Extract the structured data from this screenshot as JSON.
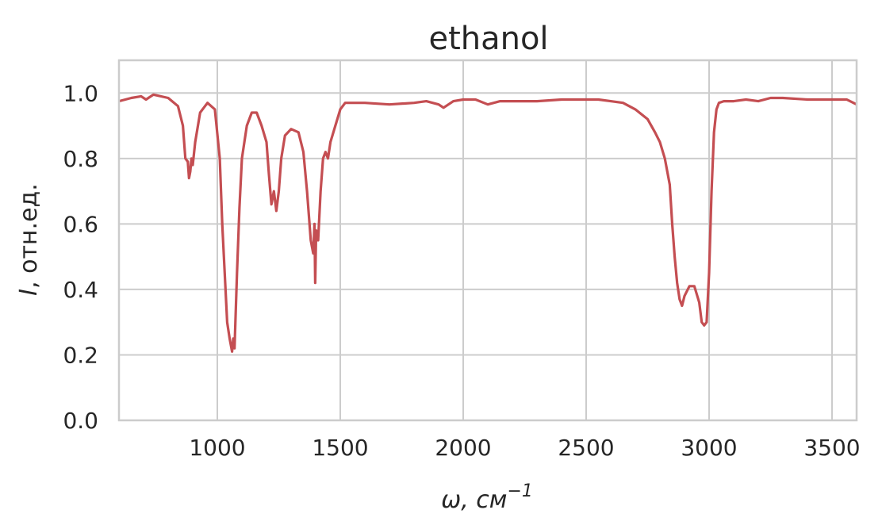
{
  "chart_data": {
    "type": "line",
    "title": "ethanol",
    "xlabel_main": "ω, см",
    "xlabel_sup": "−1",
    "ylabel_italic": "I",
    "ylabel_rest": ", отн.ед.",
    "xlim": [
      600,
      3600
    ],
    "ylim": [
      0,
      1.1
    ],
    "xticks": [
      1000,
      1500,
      2000,
      2500,
      3000,
      3500
    ],
    "xtick_labels": [
      "1000",
      "1500",
      "2000",
      "2500",
      "3000",
      "3500"
    ],
    "yticks": [
      0.0,
      0.2,
      0.4,
      0.6,
      0.8,
      1.0
    ],
    "ytick_labels": [
      "0.0",
      "0.2",
      "0.4",
      "0.6",
      "0.8",
      "1.0"
    ],
    "grid": true,
    "line_color": "#c44e52",
    "series": [
      {
        "x": [
          600,
          650,
          690,
          710,
          740,
          800,
          840,
          860,
          870,
          880,
          885,
          890,
          895,
          900,
          910,
          930,
          960,
          990,
          1010,
          1020,
          1030,
          1040,
          1050,
          1060,
          1065,
          1070,
          1080,
          1090,
          1100,
          1120,
          1140,
          1160,
          1180,
          1200,
          1210,
          1220,
          1230,
          1240,
          1250,
          1260,
          1275,
          1300,
          1330,
          1350,
          1365,
          1380,
          1390,
          1395,
          1398,
          1402,
          1410,
          1420,
          1430,
          1440,
          1450,
          1460,
          1480,
          1500,
          1520,
          1550,
          1600,
          1700,
          1800,
          1850,
          1900,
          1920,
          1940,
          1960,
          2000,
          2050,
          2100,
          2150,
          2200,
          2300,
          2400,
          2500,
          2550,
          2600,
          2650,
          2700,
          2750,
          2780,
          2800,
          2820,
          2840,
          2850,
          2860,
          2870,
          2880,
          2890,
          2900,
          2920,
          2940,
          2960,
          2970,
          2980,
          2990,
          3000,
          3010,
          3020,
          3030,
          3040,
          3060,
          3100,
          3150,
          3200,
          3250,
          3300,
          3400,
          3500,
          3560,
          3600
        ],
        "y": [
          0.975,
          0.985,
          0.99,
          0.98,
          0.995,
          0.985,
          0.96,
          0.9,
          0.8,
          0.79,
          0.74,
          0.76,
          0.8,
          0.78,
          0.85,
          0.94,
          0.97,
          0.95,
          0.8,
          0.6,
          0.45,
          0.3,
          0.25,
          0.21,
          0.25,
          0.22,
          0.45,
          0.65,
          0.8,
          0.9,
          0.94,
          0.94,
          0.9,
          0.85,
          0.75,
          0.66,
          0.7,
          0.64,
          0.7,
          0.8,
          0.87,
          0.89,
          0.88,
          0.82,
          0.7,
          0.55,
          0.51,
          0.6,
          0.42,
          0.58,
          0.55,
          0.7,
          0.8,
          0.82,
          0.8,
          0.85,
          0.9,
          0.95,
          0.97,
          0.97,
          0.97,
          0.965,
          0.97,
          0.975,
          0.965,
          0.955,
          0.965,
          0.975,
          0.98,
          0.98,
          0.965,
          0.975,
          0.975,
          0.975,
          0.98,
          0.98,
          0.98,
          0.975,
          0.97,
          0.95,
          0.92,
          0.88,
          0.85,
          0.8,
          0.72,
          0.6,
          0.5,
          0.42,
          0.37,
          0.35,
          0.38,
          0.41,
          0.41,
          0.36,
          0.3,
          0.29,
          0.3,
          0.45,
          0.7,
          0.88,
          0.95,
          0.97,
          0.975,
          0.975,
          0.98,
          0.975,
          0.985,
          0.985,
          0.98,
          0.98,
          0.98,
          0.965
        ]
      }
    ]
  }
}
